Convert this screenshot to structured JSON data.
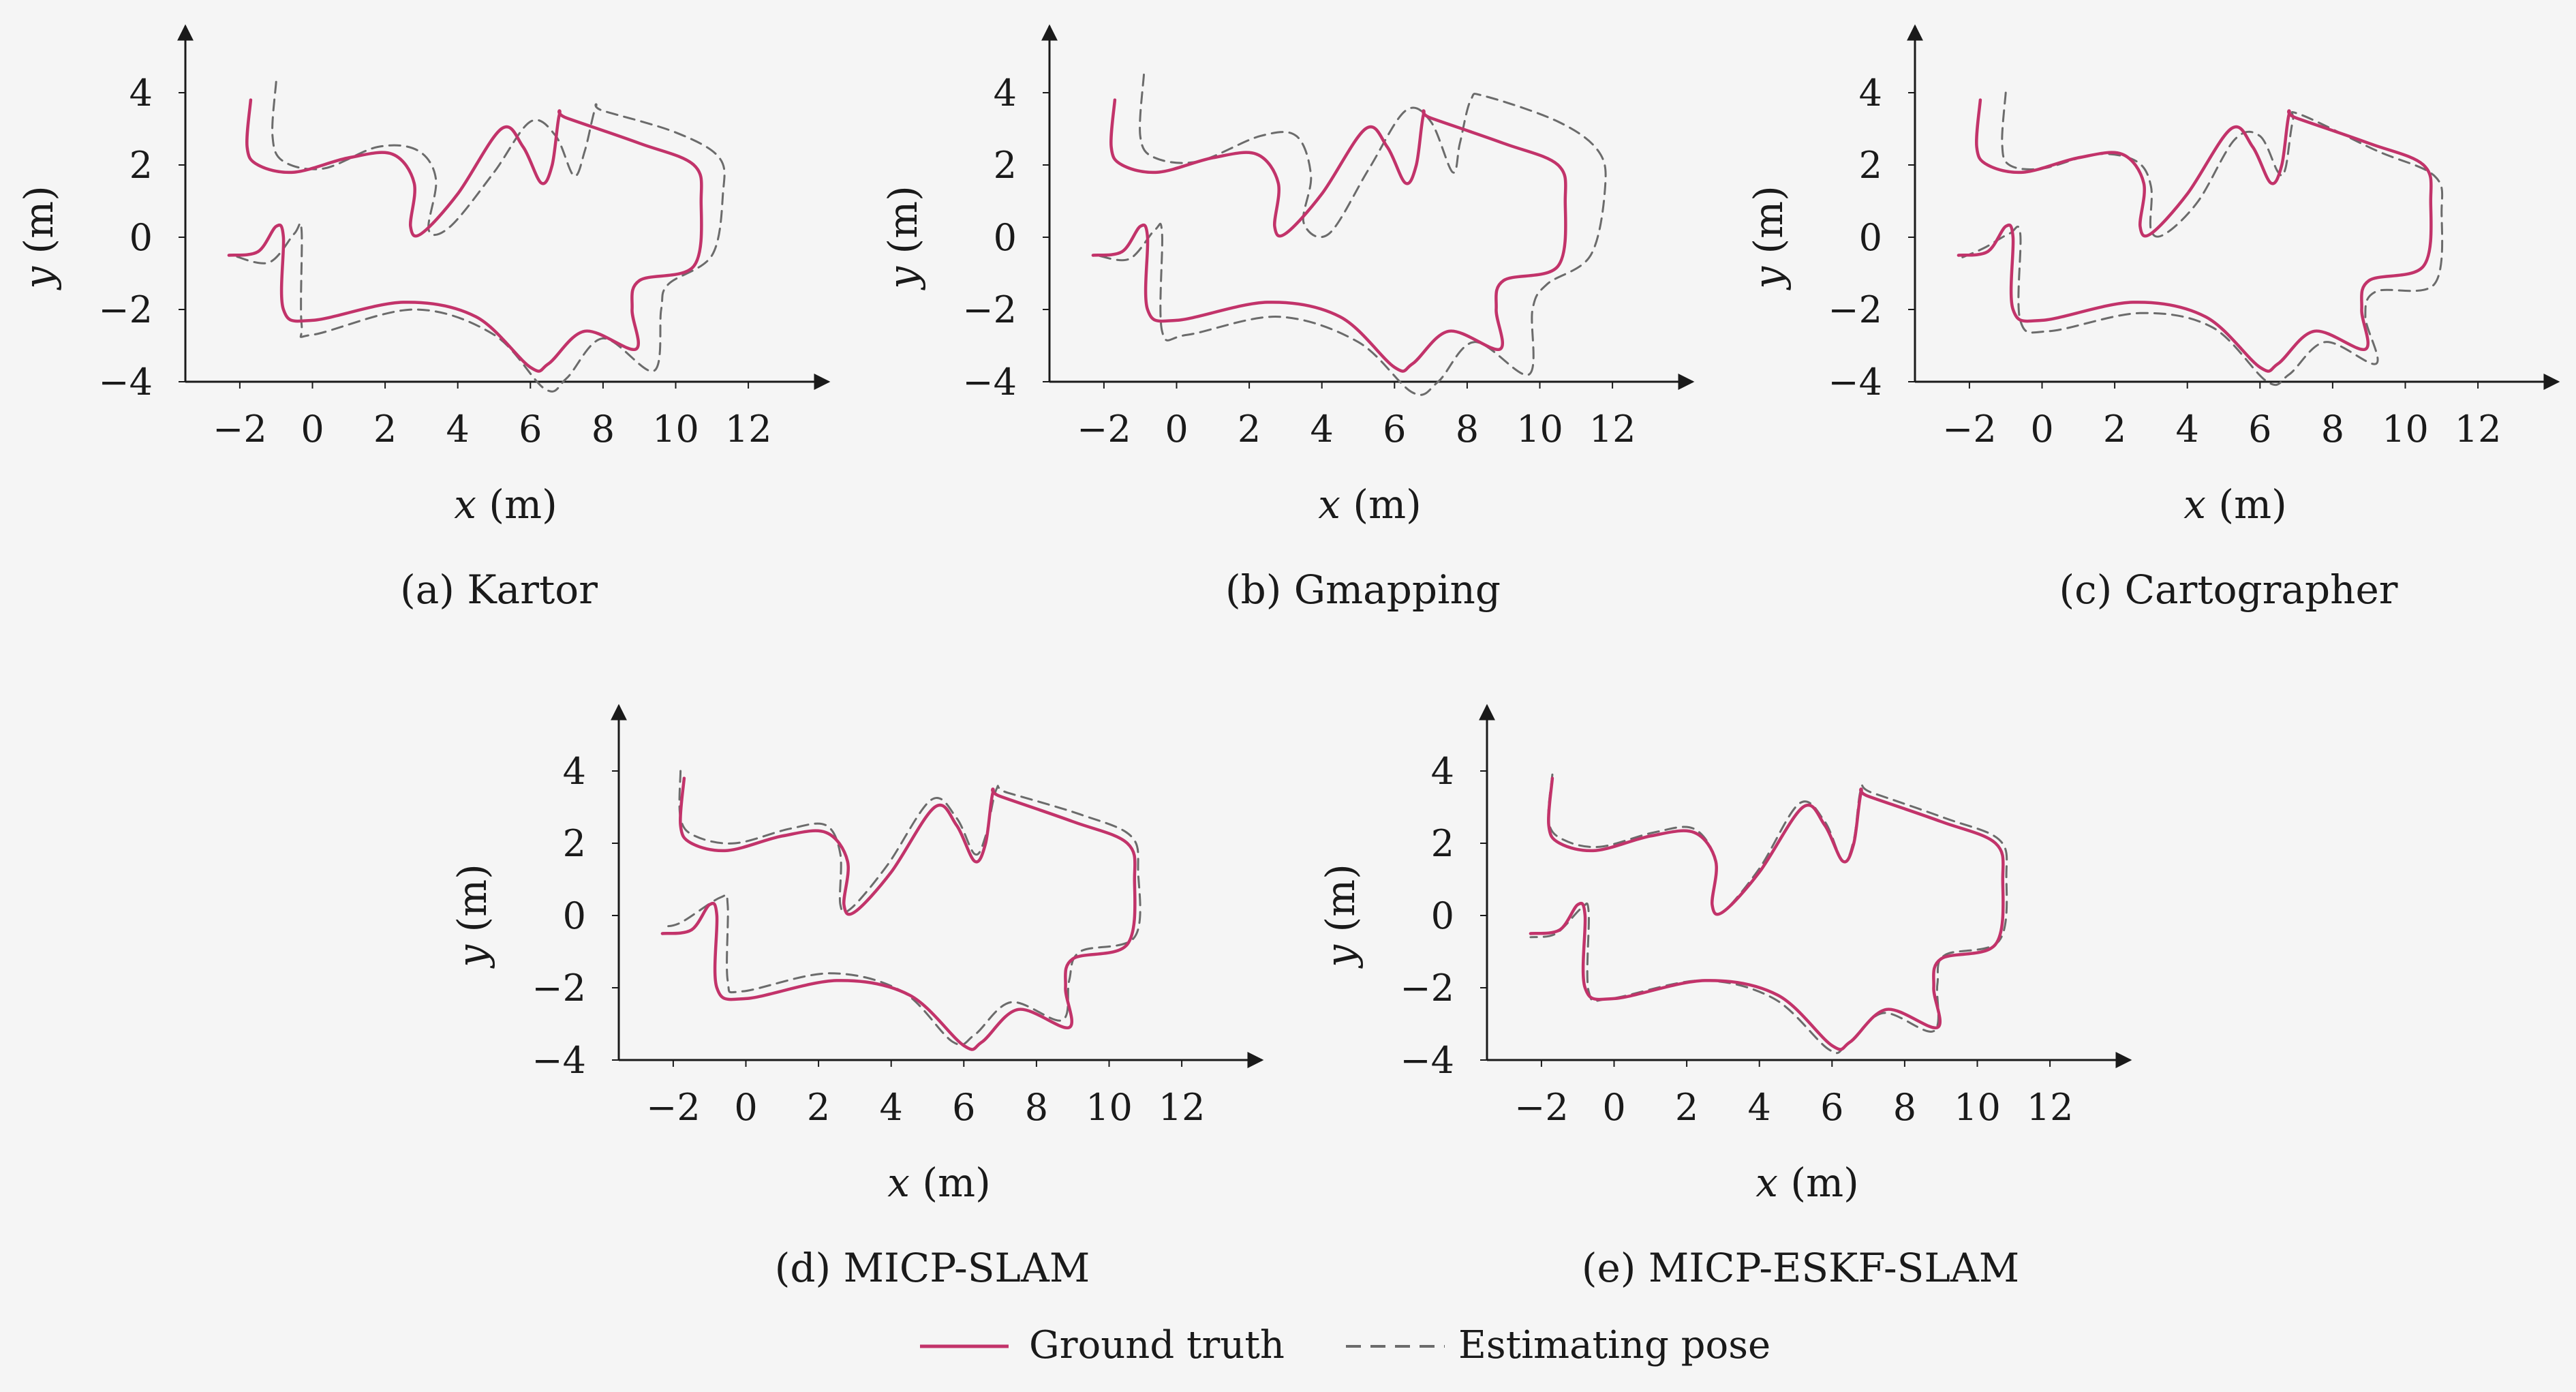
{
  "colors": {
    "background": "#f5f5f5",
    "axis": "#1a1a1a",
    "ground_truth": "#c2336a",
    "estimate": "#6b6b6b"
  },
  "legend": {
    "ground_truth_label": "Ground truth",
    "estimate_label": "Estimating pose"
  },
  "chart_data": [
    {
      "type": "line",
      "caption": "(a) Kartor",
      "xlabel_var": "x",
      "xlabel_unit": "(m)",
      "ylabel_var": "y",
      "ylabel_unit": "(m)",
      "xticks": [
        -2,
        0,
        2,
        4,
        6,
        8,
        10,
        12
      ],
      "yticks": [
        -4,
        -2,
        0,
        2,
        4
      ],
      "xlim": [
        -3.5,
        14.0
      ],
      "ylim": [
        -4.0,
        5.8
      ],
      "series": [
        {
          "name": "Ground truth",
          "style": "solid",
          "x": [
            -1.7,
            -1.8,
            -1.5,
            -0.5,
            1.0,
            2.2,
            2.8,
            2.7,
            3.0,
            4.0,
            5.2,
            5.8,
            6.3,
            6.6,
            6.8,
            7.0,
            9.0,
            10.5,
            10.7,
            10.5,
            9.0,
            8.8,
            8.9,
            7.5,
            6.5,
            6.0,
            4.5,
            2.5,
            0.0,
            -0.8,
            -0.8,
            -1.0,
            -1.5,
            -2.3
          ],
          "y": [
            3.8,
            2.5,
            2.0,
            1.8,
            2.2,
            2.3,
            1.5,
            0.3,
            0.1,
            1.2,
            3.0,
            2.5,
            1.5,
            2.0,
            3.4,
            3.3,
            2.6,
            2.0,
            1.0,
            -0.8,
            -1.2,
            -2.0,
            -3.1,
            -2.6,
            -3.5,
            -3.6,
            -2.2,
            -1.8,
            -2.3,
            -2.0,
            0.0,
            0.3,
            -0.4,
            -0.5
          ]
        },
        {
          "name": "Estimating pose",
          "style": "dashed",
          "x": [
            -1.0,
            -1.1,
            -0.8,
            0.3,
            1.8,
            2.9,
            3.4,
            3.2,
            3.8,
            5.0,
            6.0,
            6.7,
            7.2,
            7.5,
            7.8,
            8.0,
            10.0,
            11.2,
            11.3,
            11.0,
            9.8,
            9.6,
            9.4,
            8.0,
            7.0,
            6.4,
            5.0,
            2.8,
            0.0,
            -0.3,
            -0.3,
            -0.5,
            -1.2,
            -2.2
          ],
          "y": [
            4.3,
            2.8,
            2.1,
            1.9,
            2.5,
            2.4,
            1.6,
            0.2,
            0.3,
            1.8,
            3.2,
            2.8,
            1.7,
            2.4,
            3.6,
            3.5,
            2.9,
            2.2,
            1.2,
            -0.5,
            -1.3,
            -2.0,
            -3.7,
            -2.8,
            -3.9,
            -4.2,
            -2.7,
            -2.0,
            -2.7,
            -2.4,
            0.2,
            0.1,
            -0.7,
            -0.5
          ]
        }
      ]
    },
    {
      "type": "line",
      "caption": "(b) Gmapping",
      "xlabel_var": "x",
      "xlabel_unit": "(m)",
      "ylabel_var": "y",
      "ylabel_unit": "(m)",
      "xticks": [
        -2,
        0,
        2,
        4,
        6,
        8,
        10,
        12
      ],
      "yticks": [
        -4,
        -2,
        0,
        2,
        4
      ],
      "xlim": [
        -3.5,
        14.0
      ],
      "ylim": [
        -4.0,
        5.8
      ],
      "series": [
        {
          "name": "Ground truth",
          "style": "solid",
          "x": [
            -1.7,
            -1.8,
            -1.5,
            -0.5,
            1.0,
            2.2,
            2.8,
            2.7,
            3.0,
            4.0,
            5.2,
            5.8,
            6.3,
            6.6,
            6.8,
            7.0,
            9.0,
            10.5,
            10.7,
            10.5,
            9.0,
            8.8,
            8.9,
            7.5,
            6.5,
            6.0,
            4.5,
            2.5,
            0.0,
            -0.8,
            -0.8,
            -1.0,
            -1.5,
            -2.3
          ],
          "y": [
            3.8,
            2.5,
            2.0,
            1.8,
            2.2,
            2.3,
            1.5,
            0.3,
            0.1,
            1.2,
            3.0,
            2.5,
            1.5,
            2.0,
            3.4,
            3.3,
            2.6,
            2.0,
            1.0,
            -0.8,
            -1.2,
            -2.0,
            -3.1,
            -2.6,
            -3.5,
            -3.6,
            -2.2,
            -1.8,
            -2.3,
            -2.0,
            0.0,
            0.3,
            -0.4,
            -0.5
          ]
        },
        {
          "name": "Estimating pose",
          "style": "dashed",
          "x": [
            -0.9,
            -1.0,
            -0.6,
            0.6,
            2.3,
            3.3,
            3.7,
            3.5,
            4.2,
            5.3,
            6.3,
            7.0,
            7.6,
            7.8,
            8.1,
            8.5,
            10.5,
            11.6,
            11.8,
            11.4,
            10.2,
            9.8,
            9.7,
            8.2,
            7.2,
            6.5,
            5.0,
            2.8,
            0.3,
            -0.4,
            -0.4,
            -0.6,
            -1.3,
            -2.2
          ],
          "y": [
            4.5,
            2.8,
            2.2,
            2.1,
            2.8,
            2.8,
            1.7,
            0.4,
            0.1,
            1.9,
            3.5,
            3.2,
            1.8,
            2.6,
            3.8,
            3.9,
            3.2,
            2.4,
            1.4,
            -0.5,
            -1.3,
            -2.0,
            -3.8,
            -2.9,
            -4.0,
            -4.3,
            -2.9,
            -2.2,
            -2.7,
            -2.6,
            0.1,
            0.2,
            -0.6,
            -0.5
          ]
        }
      ]
    },
    {
      "type": "line",
      "caption": "(c) Cartographer",
      "xlabel_var": "x",
      "xlabel_unit": "(m)",
      "ylabel_var": "y",
      "ylabel_unit": "(m)",
      "xticks": [
        -2,
        0,
        2,
        4,
        6,
        8,
        10,
        12
      ],
      "yticks": [
        -4,
        -2,
        0,
        2,
        4
      ],
      "xlim": [
        -3.5,
        14.0
      ],
      "ylim": [
        -4.0,
        5.8
      ],
      "series": [
        {
          "name": "Ground truth",
          "style": "solid",
          "x": [
            -1.7,
            -1.8,
            -1.5,
            -0.5,
            1.0,
            2.2,
            2.8,
            2.7,
            3.0,
            4.0,
            5.2,
            5.8,
            6.3,
            6.6,
            6.8,
            7.0,
            9.0,
            10.5,
            10.7,
            10.5,
            9.0,
            8.8,
            8.9,
            7.5,
            6.5,
            6.0,
            4.5,
            2.5,
            0.0,
            -0.8,
            -0.8,
            -1.0,
            -1.5,
            -2.3
          ],
          "y": [
            3.8,
            2.5,
            2.0,
            1.8,
            2.2,
            2.3,
            1.5,
            0.3,
            0.1,
            1.2,
            3.0,
            2.5,
            1.5,
            2.0,
            3.4,
            3.3,
            2.6,
            2.0,
            1.0,
            -0.8,
            -1.2,
            -2.0,
            -3.1,
            -2.6,
            -3.5,
            -3.6,
            -2.2,
            -1.8,
            -2.3,
            -2.0,
            0.0,
            0.3,
            -0.4,
            -0.5
          ]
        },
        {
          "name": "Estimating pose",
          "style": "dashed",
          "x": [
            -1.0,
            -1.1,
            -0.9,
            0.0,
            1.5,
            2.6,
            3.0,
            3.0,
            3.4,
            4.3,
            5.3,
            6.0,
            6.5,
            6.7,
            6.9,
            7.1,
            9.2,
            10.8,
            11.0,
            10.8,
            9.2,
            8.9,
            9.2,
            7.8,
            6.8,
            6.2,
            4.7,
            2.7,
            0.2,
            -0.6,
            -0.6,
            -0.9,
            -1.6,
            -2.3
          ],
          "y": [
            4.0,
            2.6,
            2.0,
            1.9,
            2.3,
            2.1,
            1.4,
            0.2,
            0.1,
            1.0,
            2.7,
            2.8,
            1.8,
            1.9,
            3.2,
            3.4,
            2.4,
            1.7,
            0.7,
            -1.3,
            -1.5,
            -2.2,
            -3.5,
            -2.9,
            -3.8,
            -4.0,
            -2.5,
            -2.1,
            -2.6,
            -2.3,
            0.1,
            0.1,
            -0.3,
            -0.6
          ]
        }
      ]
    },
    {
      "type": "line",
      "caption": "(d) MICP-SLAM",
      "xlabel_var": "x",
      "xlabel_unit": "(m)",
      "ylabel_var": "y",
      "ylabel_unit": "(m)",
      "xticks": [
        -2,
        0,
        2,
        4,
        6,
        8,
        10,
        12
      ],
      "yticks": [
        -4,
        -2,
        0,
        2,
        4
      ],
      "xlim": [
        -3.5,
        14.0
      ],
      "ylim": [
        -4.0,
        5.8
      ],
      "series": [
        {
          "name": "Ground truth",
          "style": "solid",
          "x": [
            -1.7,
            -1.8,
            -1.5,
            -0.5,
            1.0,
            2.2,
            2.8,
            2.7,
            3.0,
            4.0,
            5.2,
            5.8,
            6.3,
            6.6,
            6.8,
            7.0,
            9.0,
            10.5,
            10.7,
            10.5,
            9.0,
            8.8,
            8.9,
            7.5,
            6.5,
            6.0,
            4.5,
            2.5,
            0.0,
            -0.8,
            -0.8,
            -1.0,
            -1.5,
            -2.3
          ],
          "y": [
            3.8,
            2.5,
            2.0,
            1.8,
            2.2,
            2.3,
            1.5,
            0.3,
            0.1,
            1.2,
            3.0,
            2.5,
            1.5,
            2.0,
            3.4,
            3.3,
            2.6,
            2.0,
            1.0,
            -0.8,
            -1.2,
            -2.0,
            -3.1,
            -2.6,
            -3.5,
            -3.6,
            -2.2,
            -1.8,
            -2.3,
            -2.0,
            0.0,
            0.3,
            -0.4,
            -0.5
          ]
        },
        {
          "name": "Estimating pose",
          "style": "dashed",
          "x": [
            -1.8,
            -1.8,
            -1.4,
            -0.3,
            1.2,
            2.2,
            2.6,
            2.6,
            2.9,
            3.9,
            5.1,
            5.8,
            6.3,
            6.6,
            6.9,
            7.2,
            9.2,
            10.6,
            10.8,
            10.7,
            9.2,
            8.9,
            8.7,
            7.3,
            6.3,
            5.7,
            4.3,
            2.3,
            -0.1,
            -0.5,
            -0.5,
            -0.7,
            -1.8,
            -2.3
          ],
          "y": [
            4.0,
            2.7,
            2.2,
            2.0,
            2.4,
            2.5,
            1.7,
            0.3,
            0.2,
            1.4,
            3.2,
            2.7,
            1.7,
            2.2,
            3.5,
            3.4,
            2.8,
            2.2,
            1.2,
            -0.6,
            -1.0,
            -1.8,
            -2.9,
            -2.4,
            -3.3,
            -3.5,
            -2.1,
            -1.6,
            -2.1,
            -1.8,
            0.3,
            0.5,
            -0.2,
            -0.3
          ]
        }
      ]
    },
    {
      "type": "line",
      "caption": "(e) MICP-ESKF-SLAM",
      "xlabel_var": "x",
      "xlabel_unit": "(m)",
      "ylabel_var": "y",
      "ylabel_unit": "(m)",
      "xticks": [
        -2,
        0,
        2,
        4,
        6,
        8,
        10,
        12
      ],
      "yticks": [
        -4,
        -2,
        0,
        2,
        4
      ],
      "xlim": [
        -3.5,
        14.0
      ],
      "ylim": [
        -4.0,
        5.8
      ],
      "series": [
        {
          "name": "Ground truth",
          "style": "solid",
          "x": [
            -1.7,
            -1.8,
            -1.5,
            -0.5,
            1.0,
            2.2,
            2.8,
            2.7,
            3.0,
            4.0,
            5.2,
            5.8,
            6.3,
            6.6,
            6.8,
            7.0,
            9.0,
            10.5,
            10.7,
            10.5,
            9.0,
            8.8,
            8.9,
            7.5,
            6.5,
            6.0,
            4.5,
            2.5,
            0.0,
            -0.8,
            -0.8,
            -1.0,
            -1.5,
            -2.3
          ],
          "y": [
            3.8,
            2.5,
            2.0,
            1.8,
            2.2,
            2.3,
            1.5,
            0.3,
            0.1,
            1.2,
            3.0,
            2.5,
            1.5,
            2.0,
            3.4,
            3.3,
            2.6,
            2.0,
            1.0,
            -0.8,
            -1.2,
            -2.0,
            -3.1,
            -2.6,
            -3.5,
            -3.6,
            -2.2,
            -1.8,
            -2.3,
            -2.0,
            0.0,
            0.3,
            -0.4,
            -0.5
          ]
        },
        {
          "name": "Estimating pose",
          "style": "dashed",
          "x": [
            -1.7,
            -1.8,
            -1.4,
            -0.4,
            1.1,
            2.2,
            2.8,
            2.7,
            3.0,
            4.0,
            5.1,
            5.8,
            6.3,
            6.6,
            6.8,
            7.1,
            9.1,
            10.6,
            10.8,
            10.6,
            9.1,
            8.9,
            8.8,
            7.4,
            6.4,
            5.9,
            4.4,
            2.4,
            -0.1,
            -0.7,
            -0.7,
            -0.9,
            -1.6,
            -2.3
          ],
          "y": [
            3.9,
            2.6,
            2.1,
            1.9,
            2.3,
            2.4,
            1.5,
            0.3,
            0.1,
            1.3,
            3.1,
            2.6,
            1.5,
            2.1,
            3.5,
            3.4,
            2.7,
            2.1,
            1.1,
            -0.7,
            -1.1,
            -1.9,
            -3.2,
            -2.7,
            -3.6,
            -3.7,
            -2.3,
            -1.8,
            -2.3,
            -2.1,
            0.1,
            0.2,
            -0.5,
            -0.6
          ]
        }
      ]
    }
  ]
}
